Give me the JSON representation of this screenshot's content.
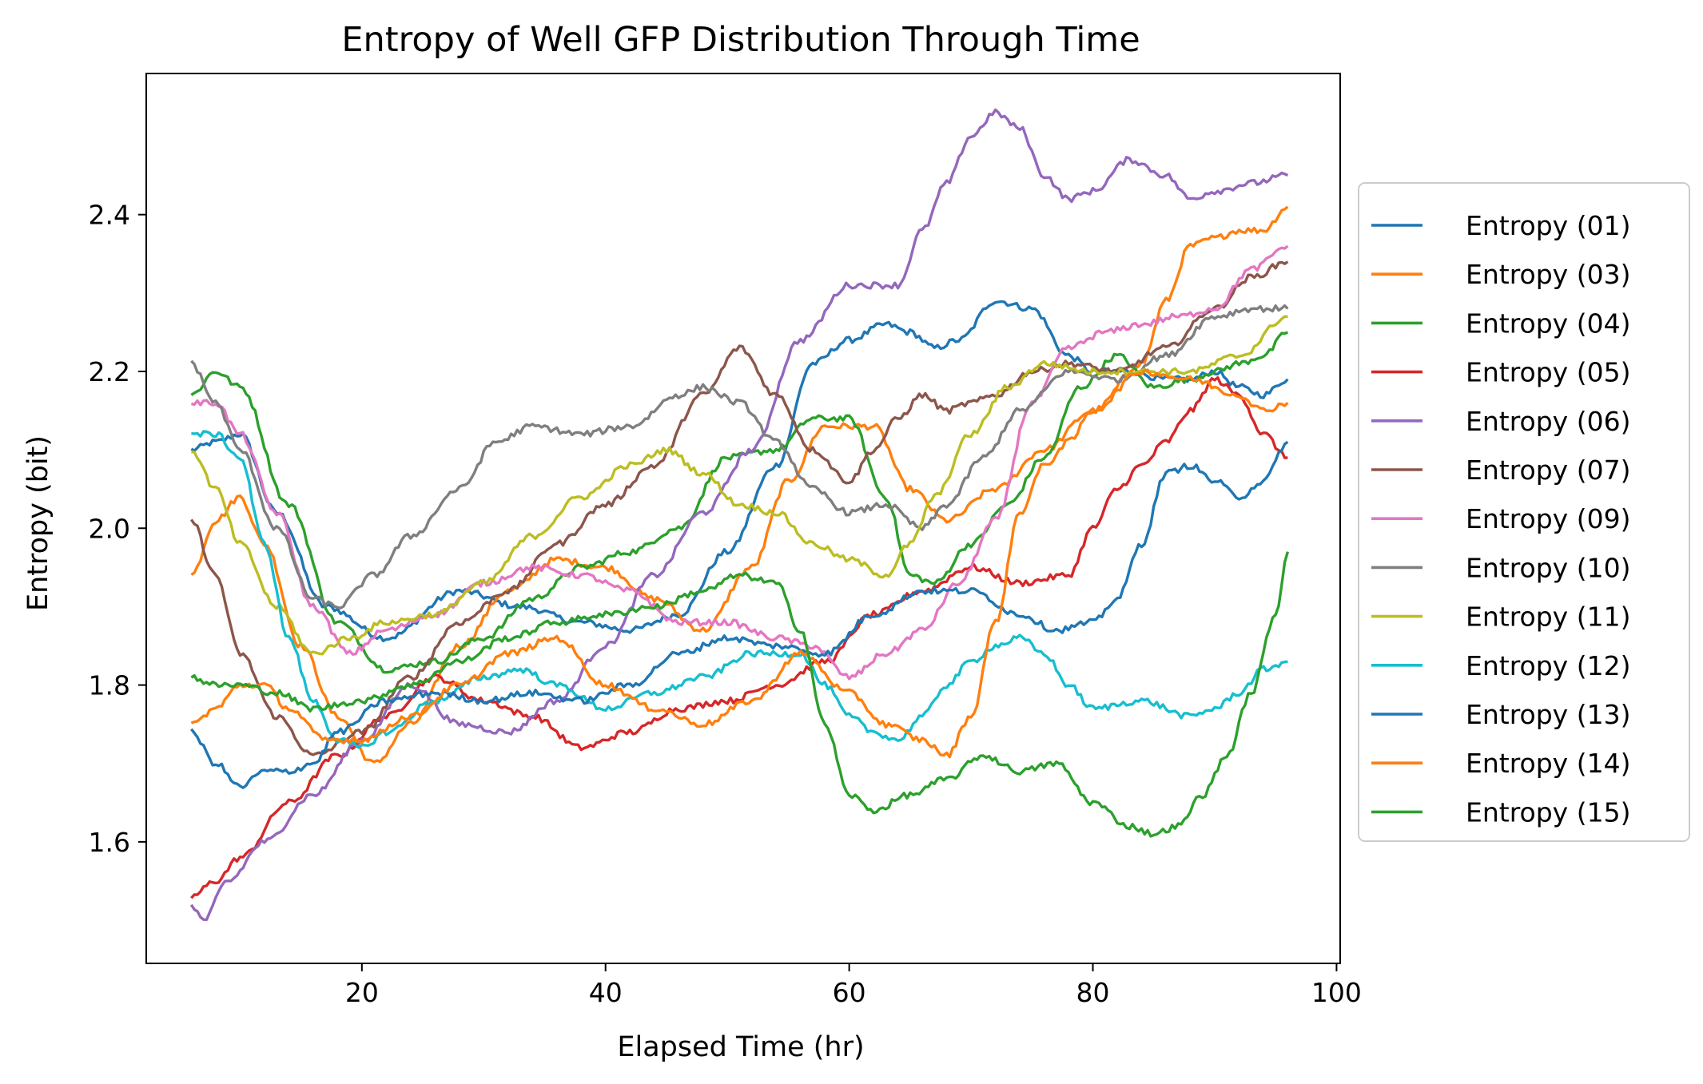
{
  "chart_data": {
    "type": "line",
    "title": "Entropy of Well GFP Distribution Through Time",
    "xlabel": "Elapsed Time (hr)",
    "ylabel": "Entropy (bit)",
    "xlim": [
      2.3,
      100.3
    ],
    "ylim": [
      1.445,
      2.58
    ],
    "xticks": [
      20,
      40,
      60,
      80,
      100
    ],
    "yticks": [
      1.6,
      1.8,
      2.0,
      2.2,
      2.4
    ],
    "grid": false,
    "legend_position": "right, outside plot",
    "series": [
      {
        "name": "Entropy (01)",
        "color": "#1f77b4",
        "x": [
          6,
          8,
          10,
          13,
          17,
          22,
          28,
          33,
          38,
          42,
          46,
          50,
          54,
          57,
          60,
          63,
          65,
          67,
          69,
          72,
          75,
          78,
          80,
          83,
          86,
          88,
          90,
          92,
          94,
          96
        ],
        "y": [
          2.1,
          2.11,
          2.12,
          2.02,
          1.9,
          1.86,
          1.92,
          1.9,
          1.88,
          1.87,
          1.89,
          1.97,
          2.08,
          2.21,
          2.24,
          2.26,
          2.25,
          2.23,
          2.24,
          2.29,
          2.28,
          2.22,
          2.2,
          2.2,
          2.19,
          2.19,
          2.2,
          2.18,
          2.17,
          2.19
        ]
      },
      {
        "name": "Entropy (03)",
        "color": "#ff7f0e",
        "x": [
          6,
          8,
          10,
          12,
          15,
          18,
          21,
          24,
          28,
          32,
          36,
          40,
          44,
          48,
          52,
          55,
          58,
          62,
          65,
          68,
          72,
          76,
          80,
          84,
          86,
          88,
          90,
          92,
          94,
          96
        ],
        "y": [
          1.94,
          2.01,
          2.04,
          1.98,
          1.85,
          1.76,
          1.7,
          1.75,
          1.85,
          1.92,
          1.96,
          1.95,
          1.91,
          1.87,
          1.95,
          2.06,
          2.13,
          2.13,
          2.05,
          2.01,
          2.05,
          2.1,
          2.15,
          2.21,
          2.29,
          2.36,
          2.37,
          2.38,
          2.38,
          2.41
        ]
      },
      {
        "name": "Entropy (04)",
        "color": "#2ca02c",
        "x": [
          6,
          8,
          10,
          14,
          18,
          22,
          26,
          30,
          34,
          38,
          42,
          46,
          50,
          54,
          57,
          60,
          63,
          65,
          67,
          70,
          73,
          76,
          79,
          82,
          85,
          88,
          90,
          92,
          94,
          96
        ],
        "y": [
          2.17,
          2.2,
          2.18,
          2.03,
          1.88,
          1.82,
          1.83,
          1.86,
          1.91,
          1.95,
          1.97,
          2.0,
          2.09,
          2.1,
          2.14,
          2.14,
          2.04,
          1.94,
          1.93,
          1.98,
          2.03,
          2.09,
          2.18,
          2.22,
          2.18,
          2.19,
          2.2,
          2.21,
          2.22,
          2.25
        ]
      },
      {
        "name": "Entropy (05)",
        "color": "#d62728",
        "x": [
          6,
          8,
          10,
          14,
          18,
          22,
          26,
          30,
          34,
          38,
          42,
          46,
          50,
          54,
          58,
          62,
          66,
          70,
          74,
          78,
          80,
          82,
          84,
          86,
          88,
          90,
          92,
          94,
          96
        ],
        "y": [
          1.53,
          1.55,
          1.58,
          1.65,
          1.71,
          1.76,
          1.81,
          1.78,
          1.76,
          1.72,
          1.74,
          1.77,
          1.78,
          1.8,
          1.83,
          1.89,
          1.92,
          1.95,
          1.93,
          1.94,
          2.0,
          2.05,
          2.08,
          2.11,
          2.15,
          2.19,
          2.17,
          2.12,
          2.09
        ]
      },
      {
        "name": "Entropy (06)",
        "color": "#9467bd",
        "x": [
          6,
          7,
          9,
          12,
          16,
          20,
          24,
          28,
          32,
          36,
          40,
          44,
          48,
          52,
          56,
          60,
          64,
          66,
          68,
          70,
          72,
          74,
          76,
          78,
          80,
          83,
          86,
          88,
          90,
          93,
          96
        ],
        "y": [
          1.52,
          1.5,
          1.55,
          1.6,
          1.66,
          1.73,
          1.8,
          1.75,
          1.74,
          1.78,
          1.85,
          1.94,
          2.02,
          2.1,
          2.24,
          2.31,
          2.31,
          2.38,
          2.44,
          2.5,
          2.53,
          2.51,
          2.45,
          2.42,
          2.43,
          2.47,
          2.45,
          2.42,
          2.43,
          2.44,
          2.45
        ]
      },
      {
        "name": "Entropy (07)",
        "color": "#8c564b",
        "x": [
          6,
          8,
          10,
          13,
          16,
          20,
          24,
          28,
          32,
          36,
          40,
          44,
          48,
          51,
          54,
          57,
          60,
          62,
          64,
          66,
          68,
          70,
          72,
          75,
          78,
          82,
          86,
          90,
          93,
          96
        ],
        "y": [
          2.01,
          1.94,
          1.84,
          1.76,
          1.71,
          1.74,
          1.81,
          1.88,
          1.92,
          1.98,
          2.03,
          2.08,
          2.17,
          2.23,
          2.17,
          2.1,
          2.06,
          2.1,
          2.14,
          2.17,
          2.15,
          2.16,
          2.17,
          2.2,
          2.21,
          2.2,
          2.23,
          2.28,
          2.32,
          2.34
        ]
      },
      {
        "name": "Entropy (09)",
        "color": "#e377c2",
        "x": [
          6,
          8,
          10,
          13,
          16,
          19,
          22,
          26,
          30,
          34,
          38,
          42,
          46,
          50,
          54,
          57,
          60,
          63,
          66,
          69,
          72,
          75,
          78,
          81,
          84,
          87,
          90,
          93,
          96
        ],
        "y": [
          2.16,
          2.16,
          2.12,
          2.02,
          1.9,
          1.84,
          1.87,
          1.89,
          1.93,
          1.95,
          1.94,
          1.92,
          1.88,
          1.88,
          1.86,
          1.85,
          1.81,
          1.84,
          1.87,
          1.93,
          2.01,
          2.16,
          2.23,
          2.25,
          2.26,
          2.27,
          2.28,
          2.33,
          2.36
        ]
      },
      {
        "name": "Entropy (10)",
        "color": "#7f7f7f",
        "x": [
          6,
          8,
          10,
          13,
          16,
          18,
          21,
          24,
          28,
          31,
          34,
          38,
          42,
          46,
          48,
          51,
          54,
          57,
          60,
          63,
          66,
          68,
          71,
          74,
          78,
          82,
          86,
          90,
          93,
          96
        ],
        "y": [
          2.21,
          2.16,
          2.1,
          2.0,
          1.91,
          1.9,
          1.94,
          1.99,
          2.05,
          2.11,
          2.13,
          2.12,
          2.13,
          2.17,
          2.18,
          2.16,
          2.11,
          2.05,
          2.02,
          2.03,
          2.0,
          2.03,
          2.09,
          2.15,
          2.2,
          2.19,
          2.22,
          2.27,
          2.28,
          2.28
        ]
      },
      {
        "name": "Entropy (11)",
        "color": "#bcbd22",
        "x": [
          6,
          8,
          10,
          13,
          16,
          19,
          22,
          26,
          30,
          34,
          38,
          42,
          45,
          48,
          51,
          54,
          57,
          60,
          63,
          65,
          67,
          70,
          73,
          76,
          80,
          84,
          88,
          92,
          96
        ],
        "y": [
          2.1,
          2.05,
          1.98,
          1.9,
          1.84,
          1.86,
          1.88,
          1.89,
          1.93,
          1.99,
          2.04,
          2.08,
          2.1,
          2.07,
          2.03,
          2.02,
          1.98,
          1.96,
          1.94,
          1.98,
          2.04,
          2.12,
          2.18,
          2.21,
          2.2,
          2.2,
          2.2,
          2.22,
          2.27
        ]
      },
      {
        "name": "Entropy (12)",
        "color": "#17becf",
        "x": [
          6,
          8,
          10,
          12,
          14,
          16,
          18,
          20,
          22,
          26,
          30,
          33,
          36,
          40,
          44,
          48,
          52,
          56,
          58,
          60,
          62,
          64,
          66,
          68,
          70,
          72,
          74,
          76,
          78,
          80,
          84,
          88,
          90,
          92,
          94,
          96
        ],
        "y": [
          2.12,
          2.12,
          2.09,
          1.98,
          1.86,
          1.78,
          1.73,
          1.72,
          1.74,
          1.78,
          1.81,
          1.82,
          1.8,
          1.77,
          1.79,
          1.81,
          1.84,
          1.84,
          1.8,
          1.76,
          1.74,
          1.73,
          1.76,
          1.8,
          1.83,
          1.85,
          1.86,
          1.84,
          1.8,
          1.77,
          1.78,
          1.76,
          1.77,
          1.79,
          1.82,
          1.83
        ]
      },
      {
        "name": "Entropy (13)",
        "color": "#1f77b4",
        "x": [
          6,
          8,
          10,
          12,
          14,
          16,
          18,
          22,
          26,
          30,
          34,
          38,
          42,
          46,
          50,
          54,
          58,
          62,
          66,
          70,
          74,
          77,
          80,
          82,
          84,
          86,
          88,
          90,
          92,
          94,
          96
        ],
        "y": [
          1.74,
          1.7,
          1.67,
          1.69,
          1.69,
          1.7,
          1.74,
          1.78,
          1.79,
          1.78,
          1.79,
          1.78,
          1.8,
          1.84,
          1.86,
          1.85,
          1.84,
          1.89,
          1.92,
          1.92,
          1.89,
          1.87,
          1.88,
          1.91,
          1.98,
          2.07,
          2.08,
          2.06,
          2.04,
          2.06,
          2.11
        ]
      },
      {
        "name": "Entropy (14)",
        "color": "#ff7f0e",
        "x": [
          6,
          8,
          10,
          12,
          14,
          17,
          20,
          24,
          28,
          32,
          36,
          40,
          44,
          48,
          52,
          56,
          60,
          63,
          66,
          68,
          70,
          72,
          74,
          76,
          78,
          80,
          84,
          88,
          92,
          94,
          96
        ],
        "y": [
          1.75,
          1.77,
          1.8,
          1.8,
          1.77,
          1.73,
          1.73,
          1.76,
          1.8,
          1.84,
          1.86,
          1.8,
          1.77,
          1.75,
          1.78,
          1.84,
          1.79,
          1.75,
          1.73,
          1.71,
          1.76,
          1.88,
          2.02,
          2.08,
          2.11,
          2.15,
          2.2,
          2.19,
          2.17,
          2.15,
          2.16
        ]
      },
      {
        "name": "Entropy (15)",
        "color": "#2ca02c",
        "x": [
          6,
          8,
          10,
          13,
          16,
          20,
          24,
          28,
          32,
          36,
          40,
          44,
          48,
          51,
          54,
          56,
          58,
          60,
          62,
          65,
          68,
          71,
          74,
          77,
          80,
          83,
          85,
          87,
          89,
          91,
          93,
          95,
          96
        ],
        "y": [
          1.81,
          1.8,
          1.8,
          1.79,
          1.77,
          1.78,
          1.8,
          1.83,
          1.86,
          1.88,
          1.89,
          1.9,
          1.92,
          1.94,
          1.93,
          1.87,
          1.75,
          1.66,
          1.64,
          1.66,
          1.68,
          1.71,
          1.69,
          1.7,
          1.65,
          1.62,
          1.61,
          1.62,
          1.66,
          1.71,
          1.79,
          1.89,
          1.97
        ]
      }
    ]
  }
}
